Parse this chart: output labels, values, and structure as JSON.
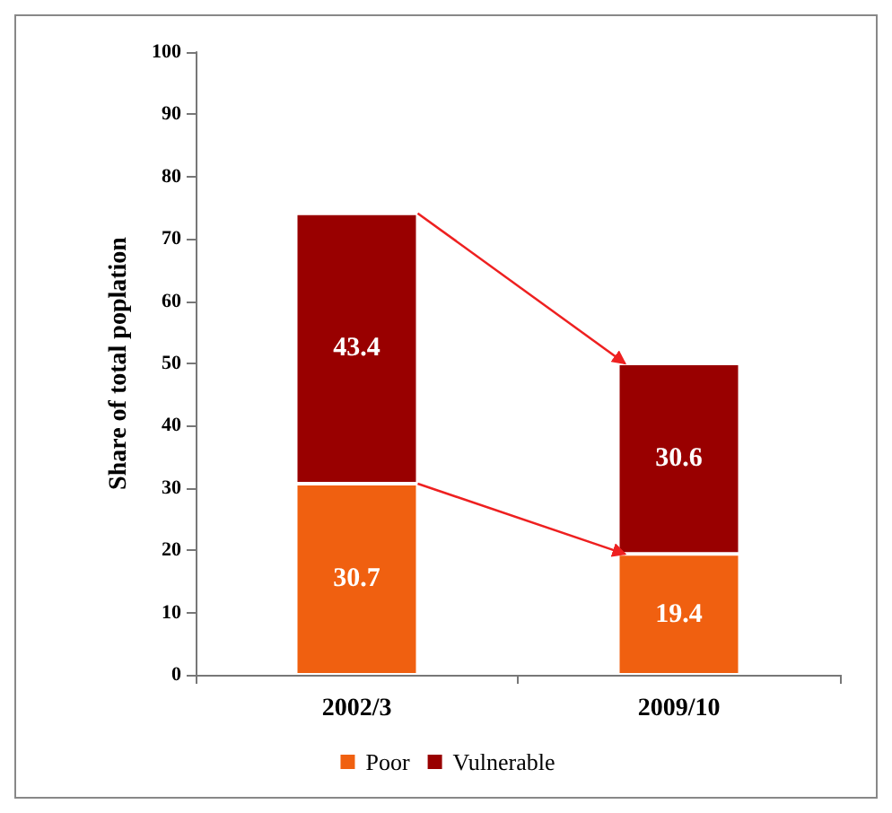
{
  "chart_data": {
    "type": "bar",
    "stacked": true,
    "ylabel": "Share of total poplation",
    "categories": [
      "2002/3",
      "2009/10"
    ],
    "series": [
      {
        "name": "Poor",
        "color": "#f06010",
        "values": [
          30.7,
          19.4
        ]
      },
      {
        "name": "Vulnerable",
        "color": "#990000",
        "values": [
          43.4,
          30.6
        ]
      }
    ],
    "data_labels": true,
    "ylim": [
      0,
      100
    ],
    "yticks": [
      0,
      10,
      20,
      30,
      40,
      50,
      60,
      70,
      80,
      90,
      100
    ],
    "grid": false,
    "legend": "bottom"
  }
}
